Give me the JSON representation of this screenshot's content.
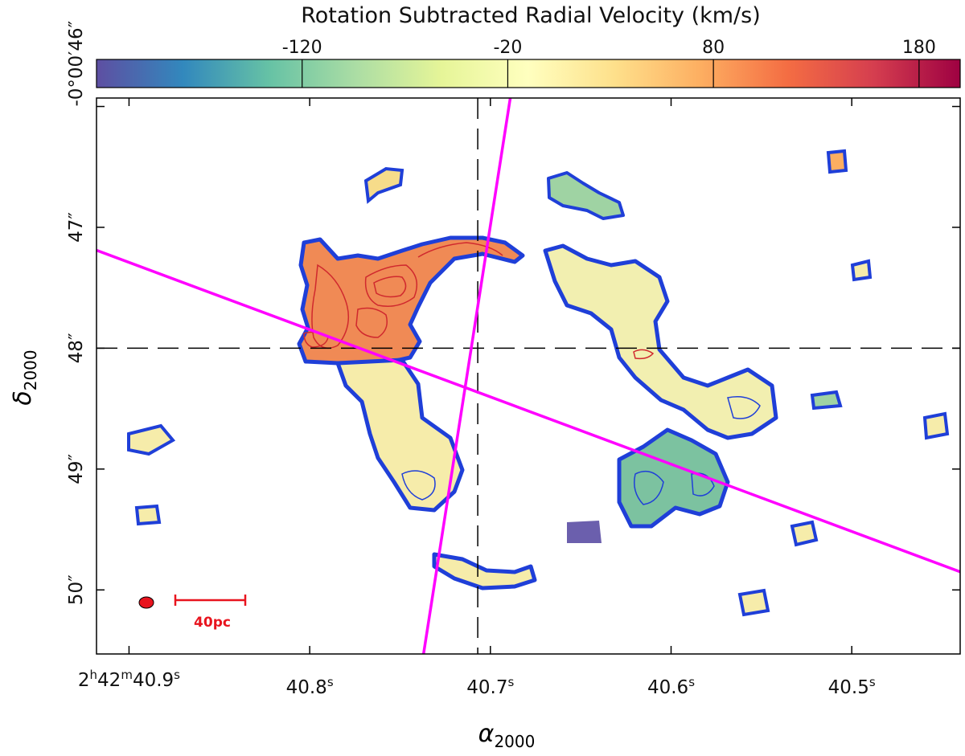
{
  "chart_data": {
    "type": "heatmap",
    "title": "Rotation Subtracted Radial Velocity (km/s)",
    "colorbar": {
      "label": "Rotation Subtracted Radial Velocity (km/s)",
      "range": [
        -220,
        200
      ],
      "ticks": [
        -120,
        -20,
        80,
        180
      ],
      "tick_labels": [
        "-120",
        "-20",
        "80",
        "180"
      ],
      "colormap": "Spectral_r",
      "placement": "top"
    },
    "xaxis": {
      "label": "α",
      "label_sub": "2000",
      "unit": "seconds of RA (2h42m)",
      "range": [
        40.918,
        40.44
      ],
      "ticks": [
        40.9,
        40.8,
        40.7,
        40.6,
        40.5
      ],
      "tick_labels": [
        {
          "prefix": "2",
          "h": "h",
          "mid": "42",
          "m": "m",
          "main": "40.9",
          "s": "s"
        },
        {
          "prefix": "",
          "h": "",
          "mid": "",
          "m": "",
          "main": "40.8",
          "s": "s"
        },
        {
          "prefix": "",
          "h": "",
          "mid": "",
          "m": "",
          "main": "40.7",
          "s": "s"
        },
        {
          "prefix": "",
          "h": "",
          "mid": "",
          "m": "",
          "main": "40.6",
          "s": "s"
        },
        {
          "prefix": "",
          "h": "",
          "mid": "",
          "m": "",
          "main": "40.5",
          "s": "s"
        }
      ]
    },
    "yaxis": {
      "label": "δ",
      "label_sub": "2000",
      "unit": "arcsec offset (-0°00')",
      "range": [
        45.93,
        50.53
      ],
      "ticks": [
        46,
        47,
        48,
        49,
        50
      ],
      "tick_labels": [
        "-0°00′46″",
        "47″",
        "48″",
        "49″",
        "50″"
      ]
    },
    "center": {
      "ra": 40.707,
      "dec": 48.0
    },
    "position_angle_lines": [
      {
        "name": "major-axis",
        "color": "#ff00ff",
        "points": [
          [
            40.918,
            47.19
          ],
          [
            40.44,
            49.85
          ]
        ]
      },
      {
        "name": "minor-axis",
        "color": "#ff00ff",
        "points": [
          [
            40.737,
            50.53
          ],
          [
            40.689,
            45.93
          ]
        ]
      }
    ],
    "emission_regions": [
      {
        "name": "western-arc",
        "mean_velocity": 110,
        "ra": [
          40.82,
          40.69
        ],
        "dec": [
          47.1,
          48.2
        ]
      },
      {
        "name": "southwest-arm",
        "mean_velocity": 20,
        "ra": [
          40.79,
          40.72
        ],
        "dec": [
          48.2,
          49.4
        ]
      },
      {
        "name": "eastern-arc",
        "mean_velocity": -10,
        "ra": [
          40.67,
          40.53
        ],
        "dec": [
          47.2,
          48.9
        ]
      },
      {
        "name": "southeast-clump",
        "mean_velocity": -140,
        "ra": [
          40.63,
          40.56
        ],
        "dec": [
          48.9,
          49.6
        ]
      },
      {
        "name": "southern-arc",
        "mean_velocity": -20,
        "ra": [
          40.73,
          40.66
        ],
        "dec": [
          49.7,
          50.0
        ]
      },
      {
        "name": "northeast-clump",
        "mean_velocity": -120,
        "ra": [
          40.66,
          40.63
        ],
        "dec": [
          46.5,
          46.8
        ]
      }
    ],
    "beam": {
      "color": "#e8141e"
    },
    "scalebar": {
      "label": "40pc",
      "color": "#e8141e"
    }
  }
}
